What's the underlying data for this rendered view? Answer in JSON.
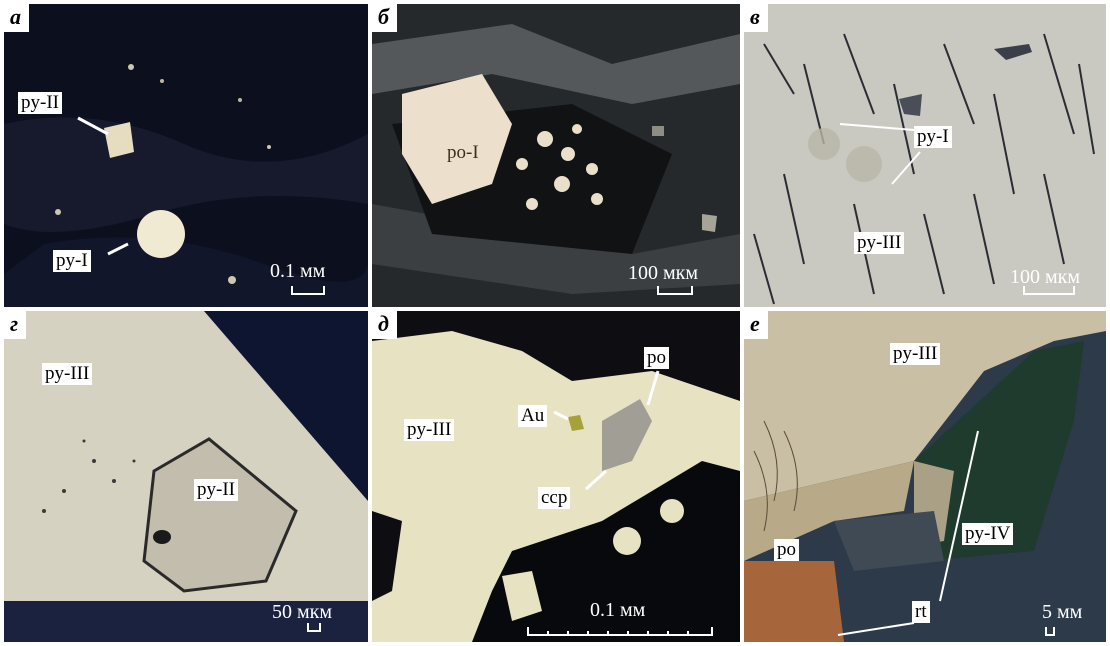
{
  "panels": [
    {
      "letter": "а",
      "labels": [
        "py-II",
        "py-I"
      ],
      "scale": "0.1 мм"
    },
    {
      "letter": "б",
      "labels": [
        "po-I"
      ],
      "scale": "100 мкм"
    },
    {
      "letter": "в",
      "labels": [
        "py-I",
        "py-III"
      ],
      "scale": "100 мкм"
    },
    {
      "letter": "г",
      "labels": [
        "py-III",
        "py-II"
      ],
      "scale": "50 мкм"
    },
    {
      "letter": "д",
      "labels": [
        "py-III",
        "Au",
        "po",
        "ccp"
      ],
      "scale": "0.1 мм"
    },
    {
      "letter": "е",
      "labels": [
        "py-III",
        "po",
        "py-IV",
        "rt"
      ],
      "scale": "5 мм"
    }
  ]
}
